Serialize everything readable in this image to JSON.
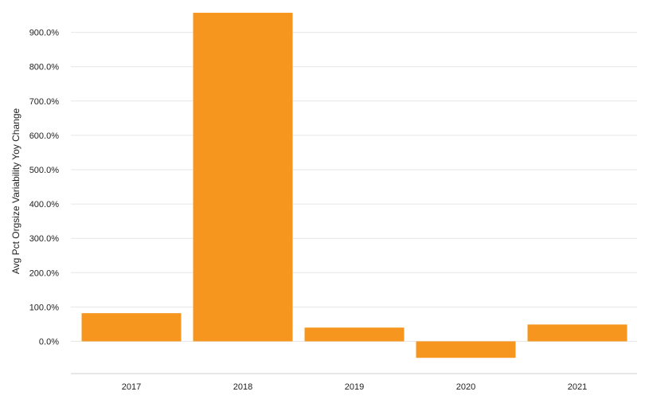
{
  "chart_data": {
    "type": "bar",
    "title": "",
    "xlabel": "",
    "ylabel": "Avg Pct Orgsize Variability Yoy Change",
    "categories": [
      "2017",
      "2018",
      "2019",
      "2020",
      "2021"
    ],
    "series": [
      {
        "color": "#F7961E",
        "values": [
          82,
          957,
          40,
          -48,
          49
        ]
      }
    ],
    "ylim": [
      -100,
      960
    ],
    "yticks": [
      0,
      100,
      200,
      300,
      400,
      500,
      600,
      700,
      800,
      900
    ],
    "ytick_labels": [
      "0.0%",
      "100.0%",
      "200.0%",
      "300.0%",
      "400.0%",
      "500.0%",
      "600.0%",
      "700.0%",
      "800.0%",
      "900.0%"
    ],
    "grid": true,
    "legend": "none"
  }
}
